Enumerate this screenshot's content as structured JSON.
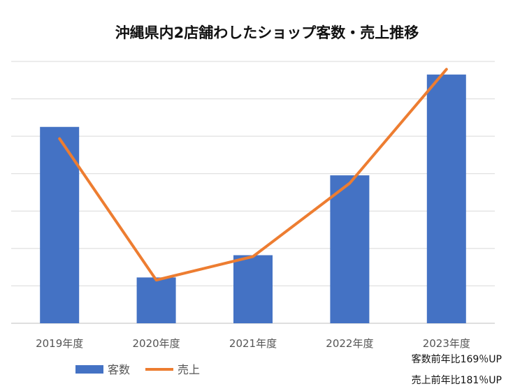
{
  "chart_data": {
    "type": "bar",
    "title": "沖縄県内2店舗わしたショップ客数・売上推移",
    "categories": [
      "2019年度",
      "2020年度",
      "2021年度",
      "2022年度",
      "2023年度"
    ],
    "ylim": [
      0,
      100
    ],
    "grid": true,
    "gridlines": 7,
    "legend_position": "bottom-left",
    "series": [
      {
        "name": "客数",
        "kind": "bar",
        "color": "#4472C4",
        "values": [
          75,
          17.5,
          26,
          56.5,
          95
        ]
      },
      {
        "name": "売上",
        "kind": "line",
        "color": "#ED7D31",
        "values": [
          70.5,
          16.5,
          25.5,
          53.5,
          97
        ]
      }
    ]
  },
  "notes": [
    "客数前年比169％UP",
    "売上前年比181％UP"
  ]
}
